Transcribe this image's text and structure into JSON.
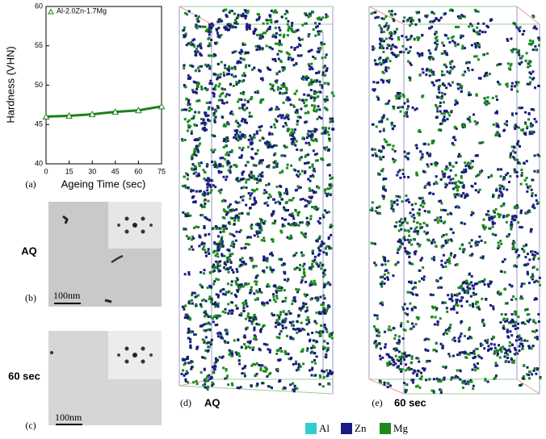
{
  "chart_data": {
    "type": "line",
    "x_label": "Ageing Time (sec)",
    "y_label": "Hardness (VHN)",
    "x": [
      0,
      15,
      30,
      45,
      60,
      75
    ],
    "series": [
      {
        "name": "Al-2.0Zn-1.7Mg",
        "color": "#1b7f1b",
        "values": [
          46.0,
          46.1,
          46.3,
          46.6,
          46.8,
          47.3
        ]
      }
    ],
    "xlim": [
      0,
      75
    ],
    "xticks": [
      0,
      15,
      30,
      45,
      60,
      75
    ],
    "ylim": [
      40,
      60
    ],
    "yticks": [
      40,
      45,
      50,
      55,
      60
    ]
  },
  "figure": {
    "panel_labels": [
      "(a)",
      "(b)",
      "(c)",
      "(d)",
      "(e)"
    ],
    "conditions": [
      "AQ",
      "60 sec",
      "AQ",
      "60 sec"
    ],
    "scale_bars": [
      "100nm",
      "100nm"
    ],
    "legend": [
      {
        "name": "Al",
        "color": "#33cccc"
      },
      {
        "name": "Zn",
        "color": "#1a1a80"
      },
      {
        "name": "Mg",
        "color": "#1b8a1b"
      }
    ]
  }
}
